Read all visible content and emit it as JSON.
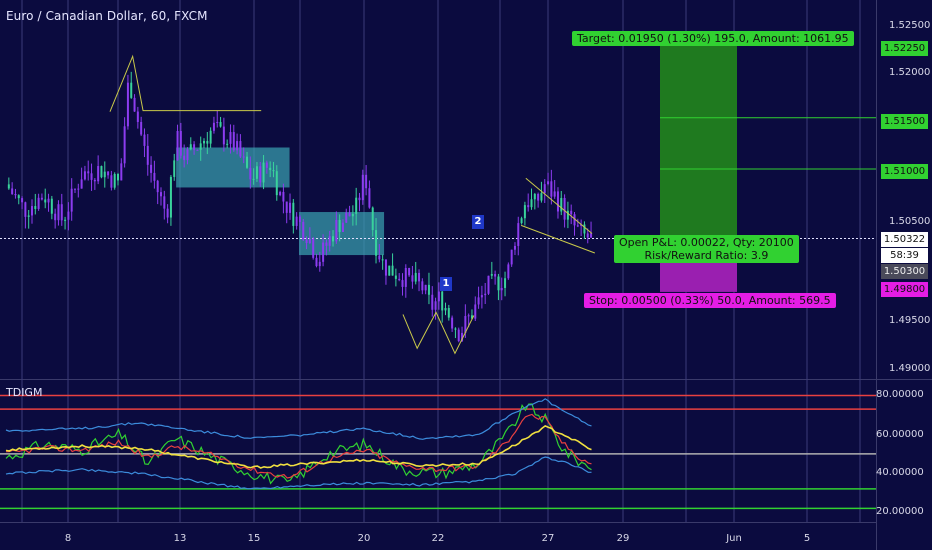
{
  "header": {
    "title": "Euro / Canadian Dollar, 60, FXCM",
    "indicator_name": "TDIGM"
  },
  "colors": {
    "background": "#0b0b3f",
    "candle": "#8c3cf0",
    "candle_alt": "#39d39c",
    "target_zone": "#1f7a1f",
    "stop_zone": "#9a1fb0",
    "pattern_line": "#c9c94a",
    "box_fill": "#3aa4b4"
  },
  "position_tool": {
    "target_label": "Target: 0.01950 (1.30%) 195.0, Amount: 1061.95",
    "pl_label_line1": "Open P&L: 0.00022, Qty: 20100",
    "pl_label_line2": "Risk/Reward Ratio: 3.9",
    "stop_label": "Stop: 0.00500 (0.33%) 50.0, Amount: 569.5"
  },
  "pattern_labels": {
    "point1": "1",
    "point2": "2"
  },
  "price_axis": {
    "ticks": [
      "1.52500",
      "1.52000",
      "1.50500",
      "1.49500",
      "1.49000"
    ],
    "tags": {
      "t_15225": "1.52250",
      "t_15150": "1.51500",
      "t_15100": "1.51000",
      "last": "1.50322",
      "countdown": "58:39",
      "t_15030": "1.50300",
      "t_14980": "1.49800"
    }
  },
  "indicator_axis": {
    "ticks": [
      "80.00000",
      "60.00000",
      "40.00000",
      "20.00000"
    ]
  },
  "time_axis": {
    "labels": [
      {
        "key": "d8",
        "text": "8"
      },
      {
        "key": "d13",
        "text": "13"
      },
      {
        "key": "d15",
        "text": "15"
      },
      {
        "key": "d20",
        "text": "20"
      },
      {
        "key": "d22",
        "text": "22"
      },
      {
        "key": "d27",
        "text": "27"
      },
      {
        "key": "d29",
        "text": "29"
      },
      {
        "key": "jun",
        "text": "Jun"
      },
      {
        "key": "d5",
        "text": "5"
      }
    ]
  },
  "chart_data": {
    "type": "candlestick",
    "symbol": "EURCAD",
    "interval": "60",
    "price_range": [
      1.4895,
      1.5265
    ],
    "indicator_range": [
      15,
      88
    ],
    "price_path": [
      {
        "t": 0,
        "p": 1.5085
      },
      {
        "t": 2,
        "p": 1.506
      },
      {
        "t": 4,
        "p": 1.5075
      },
      {
        "t": 6,
        "p": 1.505
      },
      {
        "t": 8,
        "p": 1.5095
      },
      {
        "t": 10,
        "p": 1.51
      },
      {
        "t": 12,
        "p": 1.5085
      },
      {
        "t": 13,
        "p": 1.519
      },
      {
        "t": 14,
        "p": 1.5145
      },
      {
        "t": 15,
        "p": 1.5105
      },
      {
        "t": 17,
        "p": 1.5055
      },
      {
        "t": 18,
        "p": 1.513
      },
      {
        "t": 19,
        "p": 1.511
      },
      {
        "t": 22,
        "p": 1.514
      },
      {
        "t": 24,
        "p": 1.5125
      },
      {
        "t": 26,
        "p": 1.509
      },
      {
        "t": 28,
        "p": 1.5105
      },
      {
        "t": 29,
        "p": 1.5075
      },
      {
        "t": 30,
        "p": 1.506
      },
      {
        "t": 32,
        "p": 1.5035
      },
      {
        "t": 33,
        "p": 1.501
      },
      {
        "t": 35,
        "p": 1.5045
      },
      {
        "t": 37,
        "p": 1.506
      },
      {
        "t": 38,
        "p": 1.5095
      },
      {
        "t": 39,
        "p": 1.503
      },
      {
        "t": 40,
        "p": 1.5005
      },
      {
        "t": 42,
        "p": 1.4995
      },
      {
        "t": 44,
        "p": 1.4985
      },
      {
        "t": 45,
        "p": 1.4965
      },
      {
        "t": 46,
        "p": 1.4975
      },
      {
        "t": 47,
        "p": 1.4955
      },
      {
        "t": 48,
        "p": 1.494
      },
      {
        "t": 50,
        "p": 1.497
      },
      {
        "t": 51,
        "p": 1.4985
      },
      {
        "t": 53,
        "p": 1.4995
      },
      {
        "t": 54,
        "p": 1.504
      },
      {
        "t": 55,
        "p": 1.507
      },
      {
        "t": 56,
        "p": 1.5065
      },
      {
        "t": 57,
        "p": 1.5085
      },
      {
        "t": 58,
        "p": 1.5075
      },
      {
        "t": 59,
        "p": 1.506
      },
      {
        "t": 60,
        "p": 1.5045
      },
      {
        "t": 61,
        "p": 1.5035
      },
      {
        "t": 62,
        "p": 1.5032
      }
    ],
    "position": {
      "entry": 1.503,
      "target": 1.5225,
      "stop": 1.498,
      "last_price": 1.50322,
      "target_levels": [
        1.5225,
        1.515,
        1.51
      ]
    },
    "tdi": {
      "levels": [
        {
          "value": 80,
          "color": "#e84040"
        },
        {
          "value": 73,
          "color": "#e84040"
        },
        {
          "value": 50,
          "color": "#b0b0b0"
        },
        {
          "value": 32,
          "color": "#31d131"
        },
        {
          "value": 22,
          "color": "#31d131"
        }
      ],
      "series": [
        {
          "name": "RSI",
          "color": "#31d131",
          "path": [
            {
              "t": 0,
              "v": 48
            },
            {
              "t": 4,
              "v": 55
            },
            {
              "t": 8,
              "v": 52
            },
            {
              "t": 12,
              "v": 60
            },
            {
              "t": 15,
              "v": 45
            },
            {
              "t": 18,
              "v": 58
            },
            {
              "t": 22,
              "v": 48
            },
            {
              "t": 26,
              "v": 40
            },
            {
              "t": 30,
              "v": 35
            },
            {
              "t": 34,
              "v": 50
            },
            {
              "t": 38,
              "v": 55
            },
            {
              "t": 42,
              "v": 42
            },
            {
              "t": 46,
              "v": 40
            },
            {
              "t": 50,
              "v": 45
            },
            {
              "t": 53,
              "v": 60
            },
            {
              "t": 55,
              "v": 75
            },
            {
              "t": 57,
              "v": 68
            },
            {
              "t": 59,
              "v": 52
            },
            {
              "t": 61,
              "v": 45
            },
            {
              "t": 62,
              "v": 43
            }
          ]
        },
        {
          "name": "Signal",
          "color": "#e84040",
          "path": [
            {
              "t": 0,
              "v": 50
            },
            {
              "t": 4,
              "v": 53
            },
            {
              "t": 8,
              "v": 52
            },
            {
              "t": 12,
              "v": 56
            },
            {
              "t": 15,
              "v": 48
            },
            {
              "t": 18,
              "v": 54
            },
            {
              "t": 22,
              "v": 49
            },
            {
              "t": 26,
              "v": 42
            },
            {
              "t": 30,
              "v": 38
            },
            {
              "t": 34,
              "v": 47
            },
            {
              "t": 38,
              "v": 52
            },
            {
              "t": 42,
              "v": 44
            },
            {
              "t": 46,
              "v": 42
            },
            {
              "t": 50,
              "v": 44
            },
            {
              "t": 53,
              "v": 56
            },
            {
              "t": 55,
              "v": 70
            },
            {
              "t": 57,
              "v": 68
            },
            {
              "t": 59,
              "v": 55
            },
            {
              "t": 61,
              "v": 47
            },
            {
              "t": 62,
              "v": 45
            }
          ]
        },
        {
          "name": "Market Base",
          "color": "#f0e040",
          "path": [
            {
              "t": 0,
              "v": 52
            },
            {
              "t": 8,
              "v": 54
            },
            {
              "t": 14,
              "v": 53
            },
            {
              "t": 20,
              "v": 48
            },
            {
              "t": 26,
              "v": 43
            },
            {
              "t": 32,
              "v": 45
            },
            {
              "t": 38,
              "v": 47
            },
            {
              "t": 44,
              "v": 44
            },
            {
              "t": 50,
              "v": 45
            },
            {
              "t": 54,
              "v": 55
            },
            {
              "t": 57,
              "v": 64
            },
            {
              "t": 59,
              "v": 60
            },
            {
              "t": 62,
              "v": 52
            }
          ]
        },
        {
          "name": "Upper Band",
          "color": "#3c8cdc",
          "path": [
            {
              "t": 0,
              "v": 62
            },
            {
              "t": 8,
              "v": 63
            },
            {
              "t": 14,
              "v": 66
            },
            {
              "t": 20,
              "v": 62
            },
            {
              "t": 26,
              "v": 58
            },
            {
              "t": 32,
              "v": 60
            },
            {
              "t": 38,
              "v": 63
            },
            {
              "t": 44,
              "v": 58
            },
            {
              "t": 50,
              "v": 60
            },
            {
              "t": 54,
              "v": 72
            },
            {
              "t": 57,
              "v": 78
            },
            {
              "t": 59,
              "v": 72
            },
            {
              "t": 62,
              "v": 64
            }
          ]
        },
        {
          "name": "Lower Band",
          "color": "#3c8cdc",
          "path": [
            {
              "t": 0,
              "v": 40
            },
            {
              "t": 8,
              "v": 42
            },
            {
              "t": 14,
              "v": 40
            },
            {
              "t": 20,
              "v": 36
            },
            {
              "t": 26,
              "v": 32
            },
            {
              "t": 32,
              "v": 34
            },
            {
              "t": 38,
              "v": 35
            },
            {
              "t": 44,
              "v": 34
            },
            {
              "t": 50,
              "v": 36
            },
            {
              "t": 54,
              "v": 40
            },
            {
              "t": 57,
              "v": 48
            },
            {
              "t": 59,
              "v": 46
            },
            {
              "t": 62,
              "v": 40
            }
          ]
        }
      ]
    }
  }
}
